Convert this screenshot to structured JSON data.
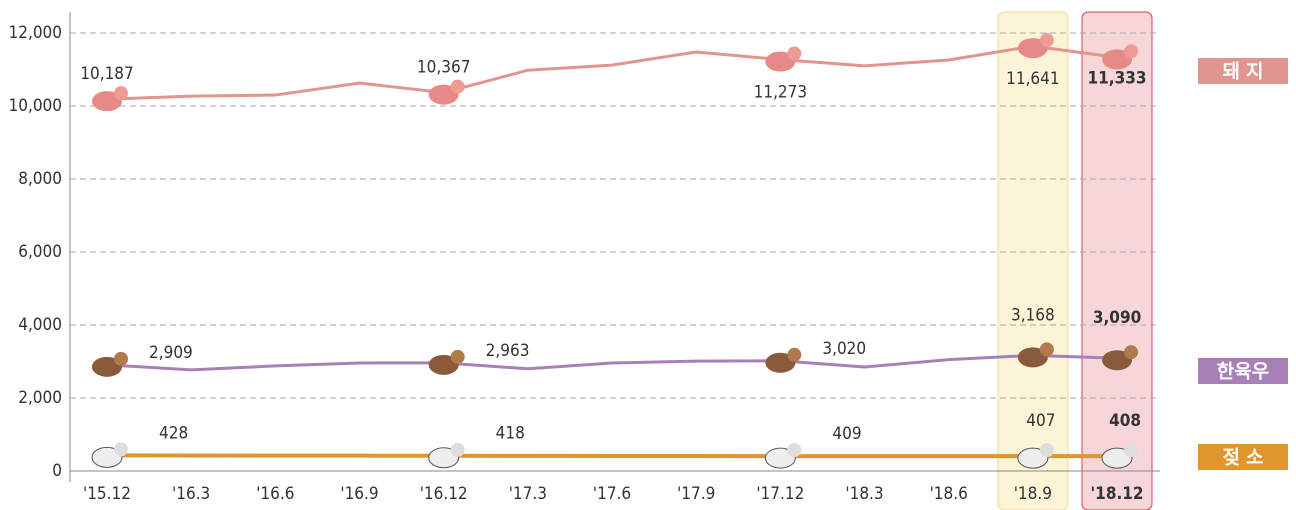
{
  "chart_data": {
    "type": "line",
    "categories": [
      "'15.12",
      "'16.3",
      "'16.6",
      "'16.9",
      "'16.12",
      "'17.3",
      "'17.6",
      "'17.9",
      "'17.12",
      "'18.3",
      "'18.6",
      "'18.9",
      "'18.12"
    ],
    "series": [
      {
        "name": "돼 지",
        "color": "#e0958f",
        "values": [
          10187,
          10270,
          10300,
          10630,
          10367,
          10980,
          11120,
          11480,
          11273,
          11100,
          11260,
          11641,
          11333
        ],
        "value_labels": [
          "10,187",
          null,
          null,
          null,
          "10,367",
          null,
          null,
          null,
          "11,273",
          null,
          null,
          "11,641",
          "11,333"
        ]
      },
      {
        "name": "한육우",
        "color": "#a880b8",
        "values": [
          2909,
          2770,
          2880,
          2960,
          2963,
          2800,
          2960,
          3010,
          3020,
          2850,
          3050,
          3168,
          3090
        ],
        "value_labels": [
          "2,909",
          null,
          null,
          null,
          "2,963",
          null,
          null,
          null,
          "3,020",
          null,
          null,
          "3,168",
          "3,090"
        ]
      },
      {
        "name": "젖 소",
        "color": "#e0962e",
        "values": [
          428,
          425,
          422,
          420,
          418,
          415,
          412,
          410,
          409,
          408,
          407,
          407,
          408
        ],
        "value_labels": [
          "428",
          null,
          null,
          null,
          "418",
          null,
          null,
          null,
          "409",
          null,
          null,
          "407",
          "408"
        ]
      }
    ],
    "ylim": [
      0,
      12000
    ],
    "yticks": [
      0,
      {
        "value": 2000,
        "label": "2,000"
      },
      {
        "value": 4000,
        "label": "4,000"
      },
      {
        "value": 6000,
        "label": "6,000"
      },
      {
        "value": 8000,
        "label": "8,000"
      },
      {
        "value": 10000,
        "label": "10,000"
      },
      {
        "value": 12000,
        "label": "12,000"
      }
    ],
    "grid": true
  }
}
